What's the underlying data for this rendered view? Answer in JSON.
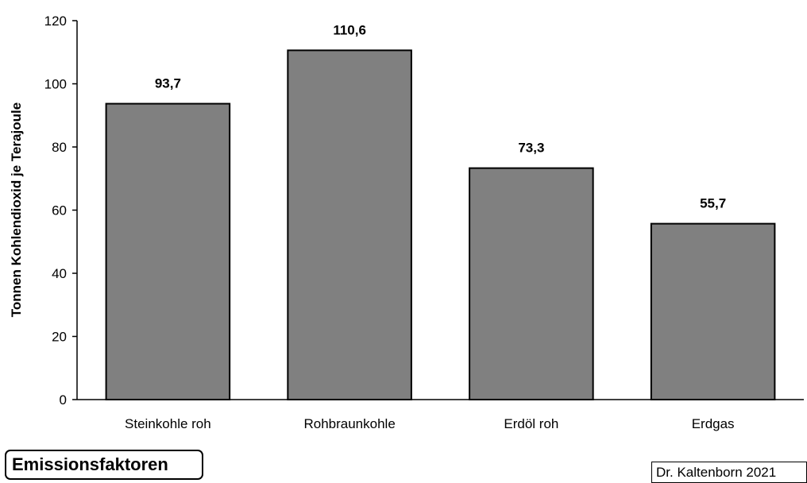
{
  "chart_data": {
    "type": "bar",
    "categories": [
      "Steinkohle roh",
      "Rohbraunkohle",
      "Erdöl roh",
      "Erdgas"
    ],
    "values": [
      93.7,
      110.6,
      73.3,
      55.7
    ],
    "value_labels": [
      "93,7",
      "110,6",
      "73,3",
      "55,7"
    ],
    "title": "",
    "xlabel": "",
    "ylabel": "Tonnen Kohlendioxid je Terajoule",
    "ylim": [
      0,
      120
    ],
    "yticks": [
      0,
      20,
      40,
      60,
      80,
      100,
      120
    ],
    "grid": false,
    "legend": "none",
    "bar_color": "#808080",
    "bar_edge_color": "#000000"
  },
  "caption": "Emissionsfaktoren",
  "credit": "Dr. Kaltenborn 2021"
}
